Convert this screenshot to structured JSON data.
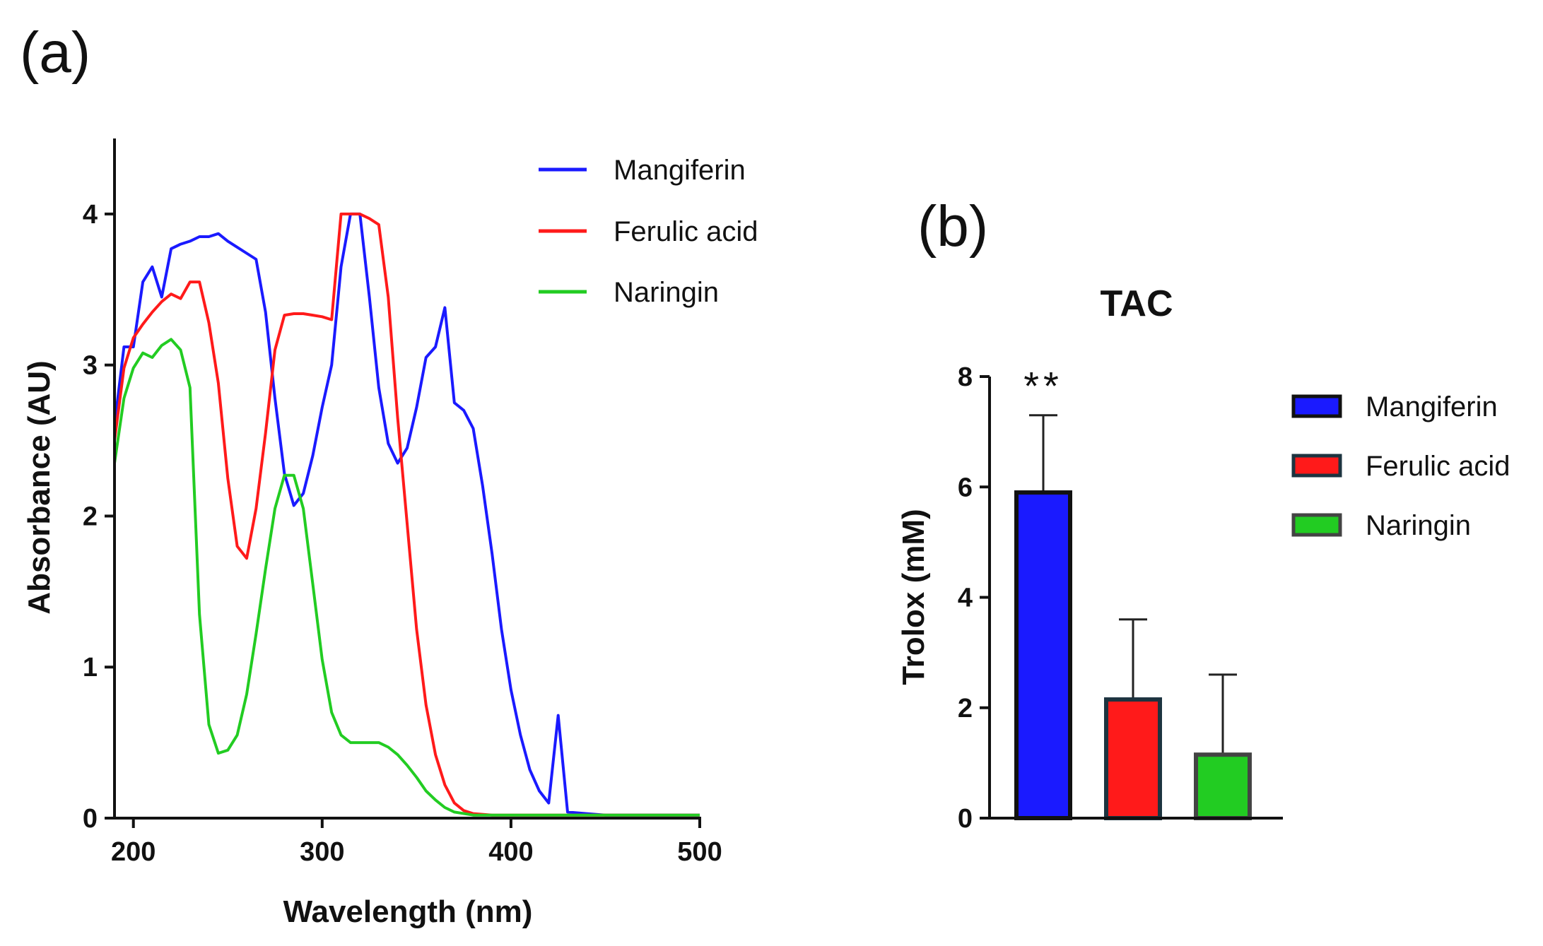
{
  "chart_data": [
    {
      "panel_label": "(a)",
      "type": "line",
      "title": "",
      "xlabel": "Wavelength (nm)",
      "ylabel": "Absorbance (AU)",
      "xlim": [
        190,
        500
      ],
      "ylim": [
        0,
        4.5
      ],
      "xticks": [
        200,
        300,
        400,
        500
      ],
      "yticks": [
        0,
        1,
        2,
        3,
        4
      ],
      "grid": false,
      "legend_position": "top-right",
      "series": [
        {
          "name": "Mangiferin",
          "color": "#1a1aff",
          "x": [
            190,
            195,
            200,
            205,
            210,
            215,
            220,
            225,
            230,
            235,
            240,
            245,
            250,
            255,
            260,
            265,
            270,
            275,
            280,
            285,
            290,
            295,
            300,
            305,
            310,
            315,
            320,
            325,
            330,
            335,
            340,
            345,
            350,
            355,
            360,
            365,
            370,
            375,
            380,
            385,
            390,
            395,
            400,
            405,
            410,
            415,
            420,
            425,
            430,
            440,
            450,
            460,
            470,
            480,
            490,
            500
          ],
          "values": [
            2.6,
            3.12,
            3.12,
            3.55,
            3.65,
            3.45,
            3.77,
            3.8,
            3.82,
            3.85,
            3.85,
            3.87,
            3.82,
            3.78,
            3.74,
            3.7,
            3.35,
            2.78,
            2.28,
            2.07,
            2.15,
            2.4,
            2.72,
            3.0,
            3.65,
            4.0,
            4.0,
            3.45,
            2.85,
            2.48,
            2.35,
            2.45,
            2.72,
            3.05,
            3.12,
            3.38,
            2.75,
            2.7,
            2.58,
            2.2,
            1.75,
            1.25,
            0.85,
            0.55,
            0.32,
            0.18,
            0.1,
            0.68,
            0.04,
            0.03,
            0.02,
            0.02,
            0.02,
            0.02,
            0.02,
            0.02
          ]
        },
        {
          "name": "Ferulic acid",
          "color": "#ff1a1a",
          "x": [
            190,
            195,
            200,
            205,
            210,
            215,
            220,
            225,
            230,
            235,
            240,
            245,
            250,
            255,
            260,
            265,
            270,
            275,
            280,
            285,
            290,
            295,
            300,
            305,
            310,
            315,
            320,
            325,
            330,
            335,
            340,
            345,
            350,
            355,
            360,
            365,
            370,
            375,
            380,
            390,
            400,
            420,
            450,
            500
          ],
          "values": [
            2.5,
            2.98,
            3.18,
            3.27,
            3.35,
            3.42,
            3.47,
            3.44,
            3.55,
            3.55,
            3.28,
            2.88,
            2.25,
            1.8,
            1.72,
            2.05,
            2.55,
            3.1,
            3.33,
            3.34,
            3.34,
            3.33,
            3.32,
            3.3,
            4.0,
            4.0,
            4.0,
            3.97,
            3.93,
            3.45,
            2.65,
            1.95,
            1.25,
            0.75,
            0.42,
            0.22,
            0.1,
            0.05,
            0.03,
            0.02,
            0.02,
            0.02,
            0.02,
            0.02
          ]
        },
        {
          "name": "Naringin",
          "color": "#22cc22",
          "x": [
            190,
            195,
            200,
            205,
            210,
            215,
            220,
            225,
            230,
            235,
            240,
            245,
            250,
            255,
            260,
            265,
            270,
            275,
            280,
            285,
            290,
            295,
            300,
            305,
            310,
            315,
            320,
            325,
            330,
            335,
            340,
            345,
            350,
            355,
            360,
            365,
            370,
            380,
            390,
            400,
            450,
            500
          ],
          "values": [
            2.35,
            2.78,
            2.98,
            3.08,
            3.05,
            3.13,
            3.17,
            3.1,
            2.85,
            1.35,
            0.62,
            0.43,
            0.45,
            0.55,
            0.82,
            1.22,
            1.65,
            2.05,
            2.27,
            2.27,
            2.05,
            1.55,
            1.05,
            0.7,
            0.55,
            0.5,
            0.5,
            0.5,
            0.5,
            0.47,
            0.42,
            0.35,
            0.27,
            0.18,
            0.12,
            0.07,
            0.04,
            0.02,
            0.02,
            0.02,
            0.02,
            0.02
          ]
        }
      ]
    },
    {
      "panel_label": "(b)",
      "type": "bar",
      "title": "TAC",
      "xlabel": "",
      "ylabel": "Trolox (mM)",
      "ylim": [
        0,
        8
      ],
      "yticks": [
        0,
        2,
        4,
        6,
        8
      ],
      "grid": false,
      "legend_position": "right",
      "categories": [
        "Mangiferin",
        "Ferulic acid",
        "Naringin"
      ],
      "values": [
        5.9,
        2.15,
        1.15
      ],
      "error_upper": [
        7.3,
        3.6,
        2.6
      ],
      "colors": [
        "#1a1aff",
        "#ff1a1a",
        "#22cc22"
      ],
      "annotations": [
        {
          "category": "Mangiferin",
          "text": "**"
        }
      ]
    }
  ]
}
